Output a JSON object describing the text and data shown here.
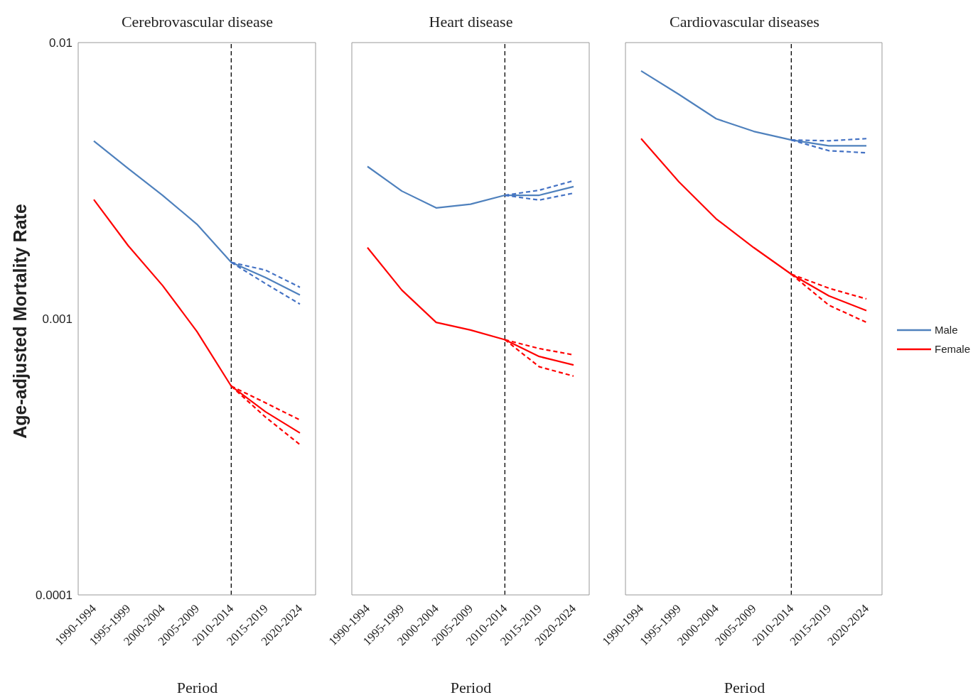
{
  "chart_data": [
    {
      "type": "line",
      "title": "Cerebrovascular disease",
      "xlabel": "Period",
      "ylabel": "Age-adjusted Mortality Rate",
      "log": true,
      "ylim": [
        0.0001,
        0.01
      ],
      "yticks": [
        0.0001,
        0.001,
        0.01
      ],
      "legend": false,
      "categories": [
        "1990-1994",
        "1995-1999",
        "2000-2004",
        "2005-2009",
        "2010-2014",
        "2015-2019",
        "2020-2024"
      ],
      "ref_lines": [
        {
          "axis": "x",
          "value": "2010-2014",
          "color": "#000000",
          "line_style": "dashed"
        }
      ],
      "series": [
        {
          "color": "#4f81bd",
          "values": [
            0.0044,
            0.0035,
            0.0028,
            0.0022,
            0.0016,
            0.00141,
            0.00122
          ]
        },
        {
          "color": "#4472c4",
          "line_style": "dashed",
          "values": [
            null,
            null,
            null,
            null,
            0.0016,
            0.0015,
            0.0013
          ]
        },
        {
          "color": "#4472c4",
          "line_style": "dashed",
          "values": [
            null,
            null,
            null,
            null,
            0.0016,
            0.00134,
            0.00113
          ]
        },
        {
          "color": "#ff0000",
          "values": [
            0.0027,
            0.00184,
            0.00132,
            0.0009,
            0.00057,
            0.00046,
            0.000386
          ]
        },
        {
          "color": "#ff0000",
          "line_style": "dashed",
          "values": [
            null,
            null,
            null,
            null,
            0.00057,
            0.000496,
            0.00043
          ]
        },
        {
          "color": "#ff0000",
          "line_style": "dashed",
          "values": [
            null,
            null,
            null,
            null,
            0.00057,
            0.00044,
            0.00035
          ]
        }
      ]
    },
    {
      "type": "line",
      "title": "Heart disease",
      "xlabel": "Period",
      "log": true,
      "ylim": [
        0.0001,
        0.01
      ],
      "yticks": [
        0.0001,
        0.001,
        0.01
      ],
      "tick_labels": "x",
      "legend": false,
      "categories": [
        "1990-1994",
        "1995-1999",
        "2000-2004",
        "2005-2009",
        "2010-2014",
        "2015-2019",
        "2020-2024"
      ],
      "ref_lines": [
        {
          "axis": "x",
          "value": "2010-2014",
          "color": "#000000",
          "line_style": "dashed"
        }
      ],
      "series": [
        {
          "color": "#4f81bd",
          "values": [
            0.00356,
            0.0029,
            0.00252,
            0.0026,
            0.0028,
            0.0028,
            0.00301
          ]
        },
        {
          "color": "#4472c4",
          "line_style": "dashed",
          "values": [
            null,
            null,
            null,
            null,
            0.0028,
            0.00292,
            0.00316
          ]
        },
        {
          "color": "#4472c4",
          "line_style": "dashed",
          "values": [
            null,
            null,
            null,
            null,
            0.0028,
            0.00269,
            0.00285
          ]
        },
        {
          "color": "#ff0000",
          "values": [
            0.00181,
            0.00127,
            0.00097,
            0.00091,
            0.00084,
            0.00073,
            0.00068
          ]
        },
        {
          "color": "#ff0000",
          "line_style": "dashed",
          "values": [
            null,
            null,
            null,
            null,
            0.00084,
            0.00078,
            0.00074
          ]
        },
        {
          "color": "#ff0000",
          "line_style": "dashed",
          "values": [
            null,
            null,
            null,
            null,
            0.00084,
            0.00067,
            0.00062
          ]
        }
      ]
    },
    {
      "type": "line",
      "title": "Cardiovascular diseases",
      "xlabel": "Period",
      "log": true,
      "ylim": [
        0.0001,
        0.01
      ],
      "yticks": [
        0.0001,
        0.001,
        0.01
      ],
      "tick_labels": "x",
      "legend": "right",
      "categories": [
        "1990-1994",
        "1995-1999",
        "2000-2004",
        "2005-2009",
        "2010-2014",
        "2015-2019",
        "2020-2024"
      ],
      "ref_lines": [
        {
          "axis": "x",
          "value": "2010-2014",
          "color": "#000000",
          "line_style": "dashed"
        }
      ],
      "series": [
        {
          "name": "Male",
          "color": "#4f81bd",
          "values": [
            0.0079,
            0.0065,
            0.0053,
            0.00477,
            0.00444,
            0.00423,
            0.00423
          ]
        },
        {
          "color": "#4472c4",
          "line_style": "dashed",
          "values": [
            null,
            null,
            null,
            null,
            0.00444,
            0.00441,
            0.00449
          ]
        },
        {
          "color": "#4472c4",
          "line_style": "dashed",
          "values": [
            null,
            null,
            null,
            null,
            0.00444,
            0.00406,
            0.00399
          ]
        },
        {
          "name": "Female",
          "color": "#ff0000",
          "values": [
            0.00449,
            0.00314,
            0.0023,
            0.00181,
            0.00145,
            0.00121,
            0.00107
          ]
        },
        {
          "color": "#ff0000",
          "line_style": "dashed",
          "values": [
            null,
            null,
            null,
            null,
            0.00145,
            0.00129,
            0.00118
          ]
        },
        {
          "color": "#ff0000",
          "line_style": "dashed",
          "values": [
            null,
            null,
            null,
            null,
            0.00145,
            0.00112,
            0.00097
          ]
        }
      ]
    }
  ]
}
